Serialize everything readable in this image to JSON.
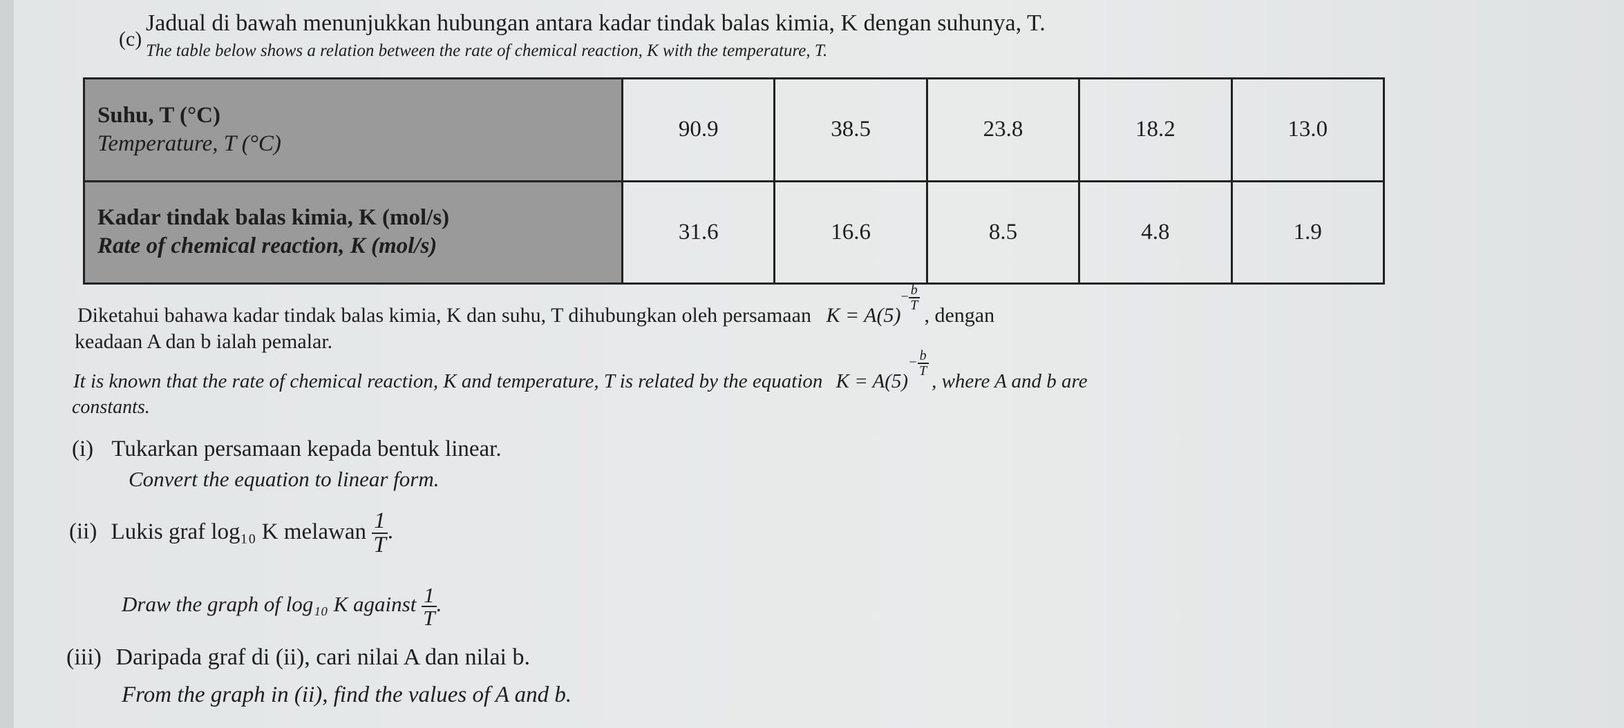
{
  "question_label": "(c)",
  "intro_ms": "Jadual di bawah menunjukkan hubungan antara kadar tindak balas kimia, K dengan suhunya, T.",
  "intro_en": "The table below shows a relation between the rate of chemical reaction, K with the temperature, T.",
  "table": {
    "row_headers": [
      {
        "ms": "Suhu, T (°C)",
        "en": "Temperature, T (°C)"
      },
      {
        "ms": "Kadar tindak balas kimia, K (mol/s)",
        "en": "Rate of chemical reaction, K (mol/s)"
      }
    ],
    "temperature": [
      "90.9",
      "38.5",
      "23.8",
      "18.2",
      "13.0"
    ],
    "rate": [
      "31.6",
      "16.6",
      "8.5",
      "4.8",
      "1.9"
    ]
  },
  "para_ms_1": "Diketahui bahawa kadar tindak balas kimia, K dan suhu, T dihubungkan oleh persamaan",
  "para_ms_eq": "K = A(5)",
  "exp_sign": "−",
  "exp_num": "b",
  "exp_den": "T",
  "para_ms_1_end": ", dengan",
  "para_ms_2": "keadaan A dan b ialah pemalar.",
  "para_en_1": "It is known that the rate of chemical reaction, K and temperature, T is related by the equation",
  "para_en_eq": "K = A(5)",
  "para_en_1_end": ", where A and b are",
  "para_en_2": "constants.",
  "parts": [
    {
      "label": "(i)",
      "ms": "Tukarkan persamaan kepada bentuk linear.",
      "en": "Convert the equation to linear form."
    },
    {
      "label": "(ii)",
      "ms": "Lukis graf log₁₀ K melawan",
      "en": "Draw the graph of log₁₀ K against",
      "frac_num": "1",
      "frac_den": "T"
    },
    {
      "label": "(iii)",
      "ms": "Daripada graf di (ii), cari nilai A dan nilai b.",
      "en": "From the graph in (ii), find the values of A and b."
    }
  ]
}
